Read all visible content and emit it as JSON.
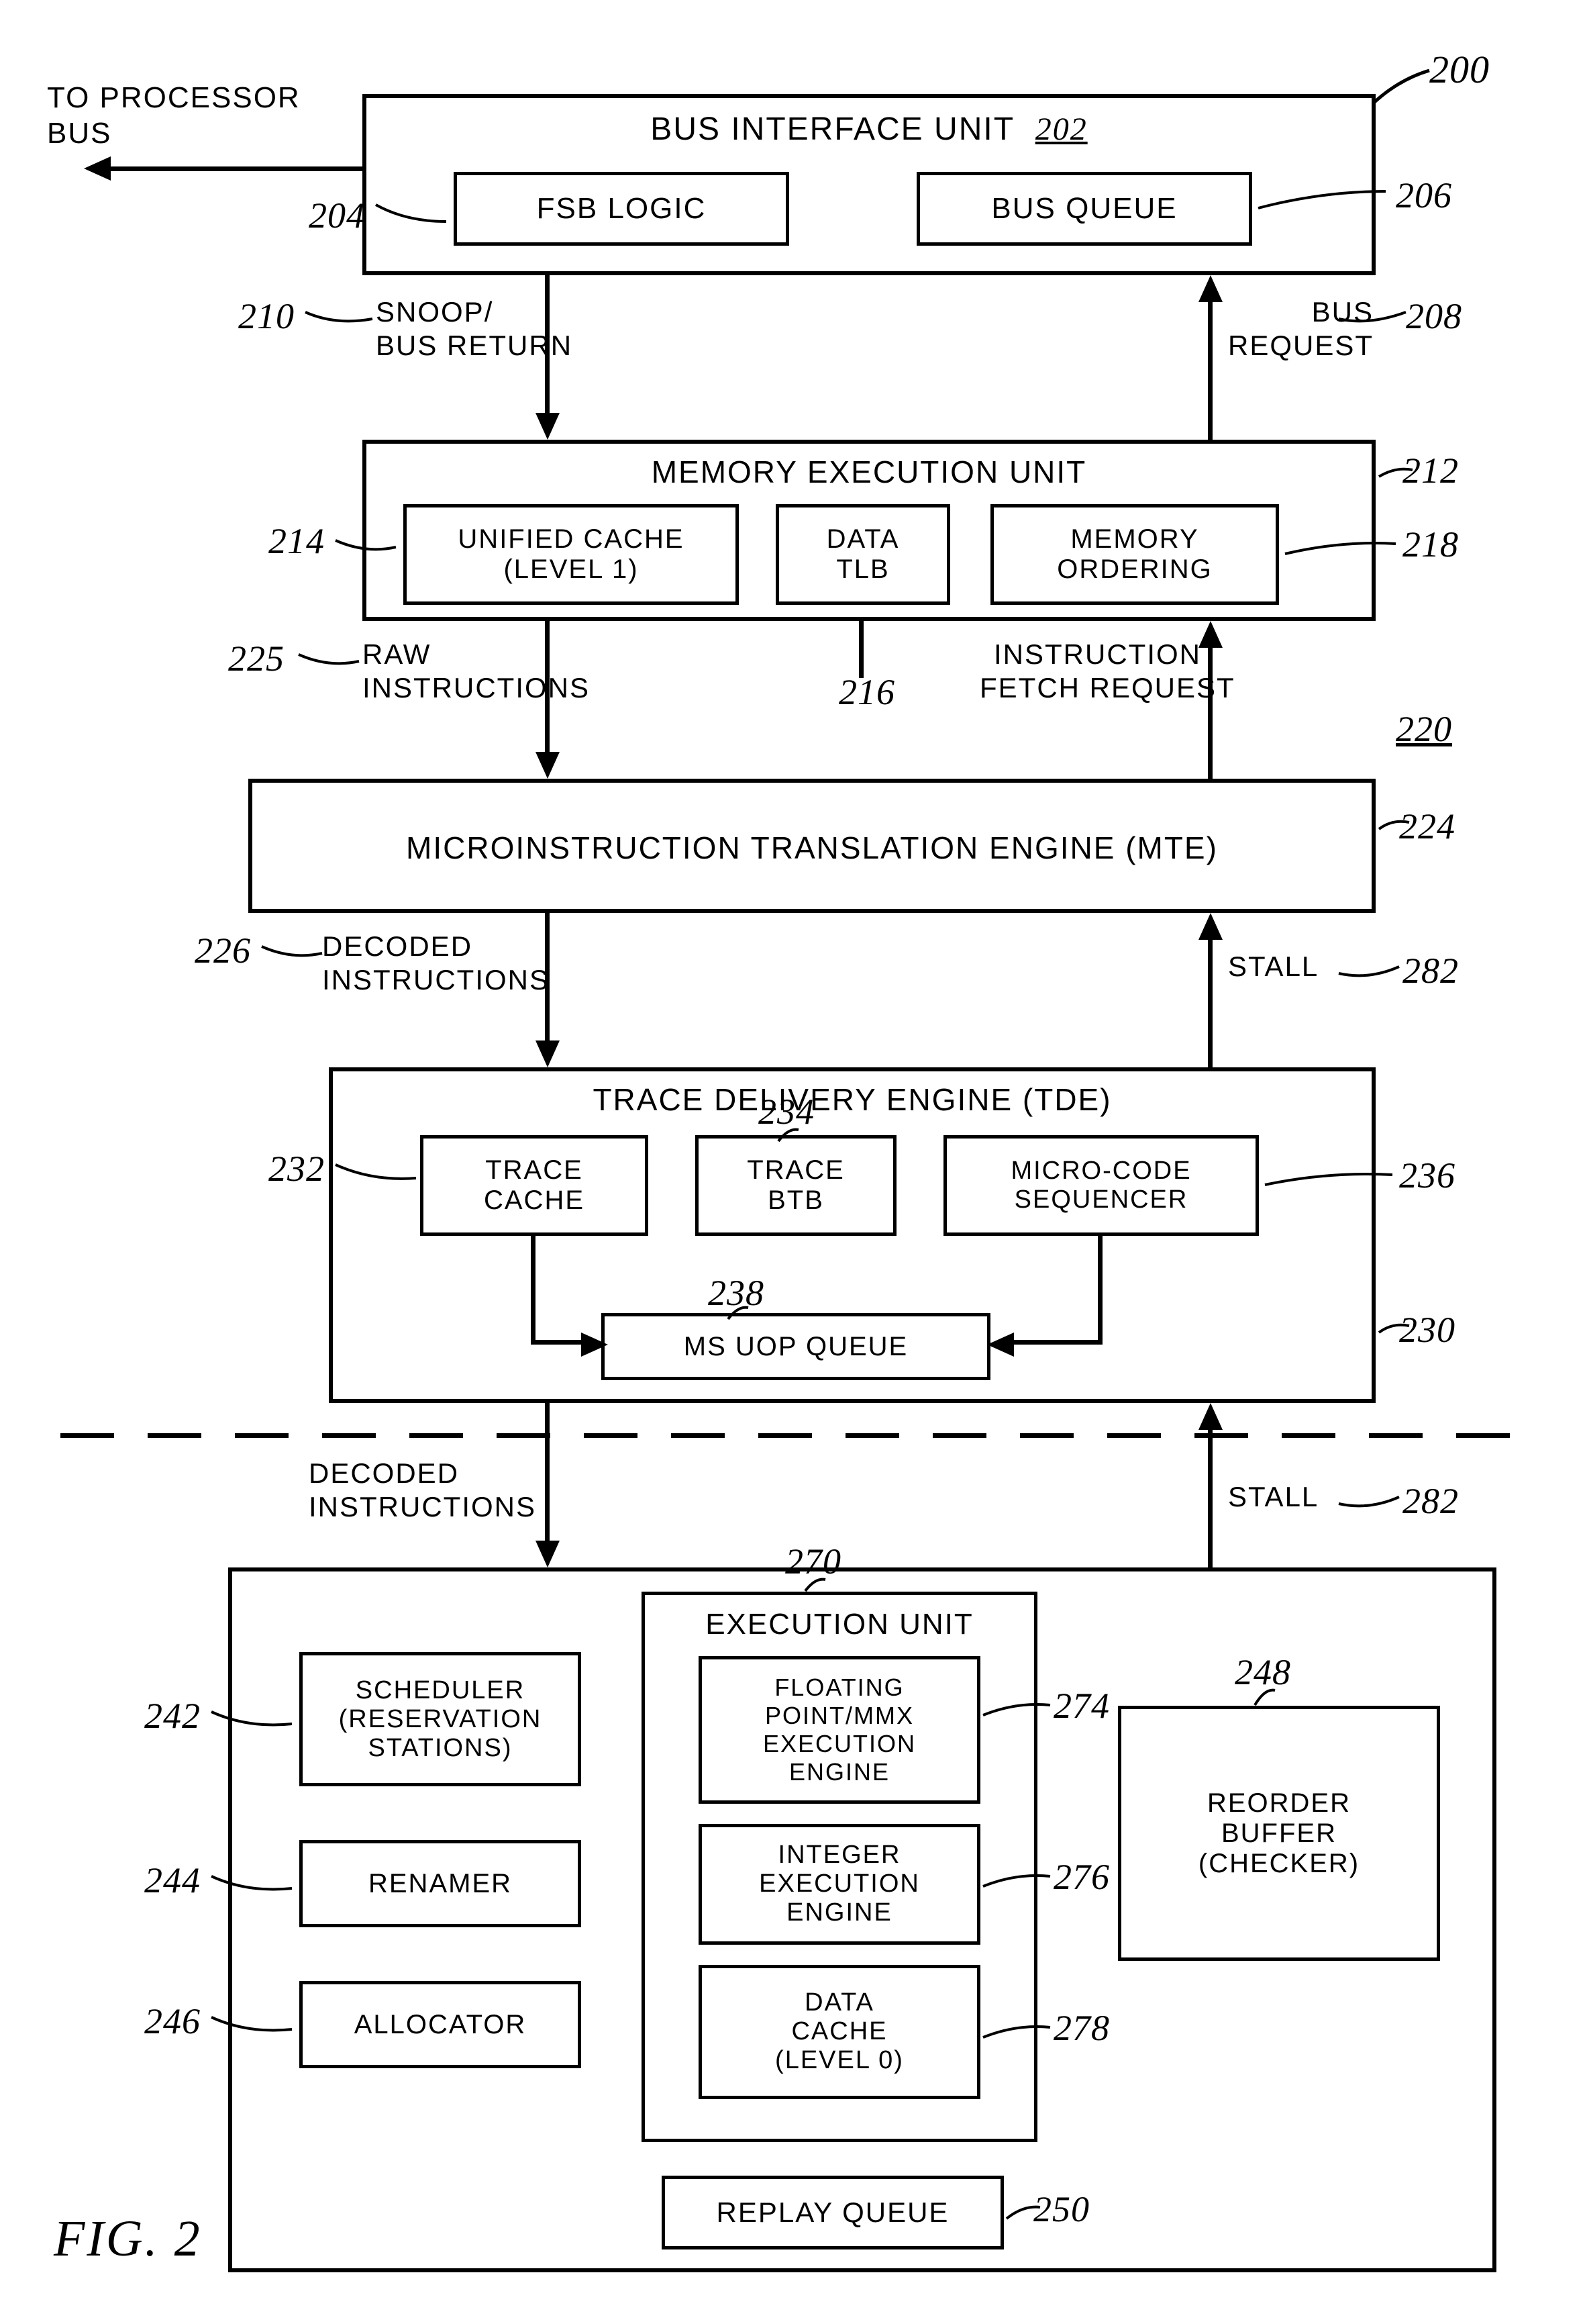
{
  "fig_label": "FIG. 2",
  "ref_200": "200",
  "to_proc_bus": "TO PROCESSOR\nBUS",
  "biu": {
    "title": "BUS INTERFACE UNIT",
    "refUnder": "202",
    "ref": "202"
  },
  "fsb": {
    "label": "FSB LOGIC",
    "ref": "204"
  },
  "busq": {
    "label": "BUS QUEUE",
    "ref": "206"
  },
  "snoop": {
    "label": "SNOOP/\nBUS RETURN",
    "ref": "210"
  },
  "busreq": {
    "label": "BUS\nREQUEST",
    "ref": "208"
  },
  "meu": {
    "title": "MEMORY EXECUTION UNIT",
    "ref": "212"
  },
  "uc": {
    "label": "UNIFIED CACHE\n(LEVEL 1)",
    "ref": "214"
  },
  "dtlb": {
    "label": "DATA\nTLB",
    "ref": "216"
  },
  "mo": {
    "label": "MEMORY\nORDERING",
    "ref": "218"
  },
  "raw": {
    "label": "RAW\nINSTRUCTIONS",
    "ref": "225"
  },
  "ifr": {
    "label": "INSTRUCTION\nFETCH REQUEST",
    "ref": "220"
  },
  "mte": {
    "title": "MICROINSTRUCTION TRANSLATION ENGINE (MTE)",
    "ref": "224"
  },
  "decoded1": {
    "label": "DECODED\nINSTRUCTIONS",
    "ref": "226"
  },
  "stall1": {
    "label": "STALL",
    "ref": "282"
  },
  "tde": {
    "title": "TRACE DELIVERY ENGINE (TDE)",
    "ref": "230"
  },
  "tc": {
    "label": "TRACE\nCACHE",
    "ref": "232"
  },
  "tb": {
    "label": "TRACE\nBTB",
    "ref": "234"
  },
  "mcs": {
    "label": "MICRO-CODE\nSEQUENCER",
    "ref": "236"
  },
  "msq": {
    "label": "MS UOP QUEUE",
    "ref": "238"
  },
  "decoded2": {
    "label": "DECODED\nINSTRUCTIONS"
  },
  "stall2": {
    "label": "STALL",
    "ref": "282"
  },
  "sched": {
    "label": "SCHEDULER\n(RESERVATION\nSTATIONS)",
    "ref": "242"
  },
  "ren": {
    "label": "RENAMER",
    "ref": "244"
  },
  "alloc": {
    "label": "ALLOCATOR",
    "ref": "246"
  },
  "eu": {
    "title": "EXECUTION UNIT",
    "ref": "270"
  },
  "fp": {
    "label": "FLOATING\nPOINT/MMX\nEXECUTION\nENGINE",
    "ref": "274"
  },
  "ie": {
    "label": "INTEGER\nEXECUTION\nENGINE",
    "ref": "276"
  },
  "dc": {
    "label": "DATA\nCACHE\n(LEVEL 0)",
    "ref": "278"
  },
  "rob": {
    "label": "REORDER\nBUFFER\n(CHECKER)",
    "ref": "248"
  },
  "rq": {
    "label": "REPLAY QUEUE",
    "ref": "250"
  },
  "style": {
    "title_fs": 48,
    "box_fs": 42,
    "ref_fs": 52,
    "label_fs": 42
  }
}
